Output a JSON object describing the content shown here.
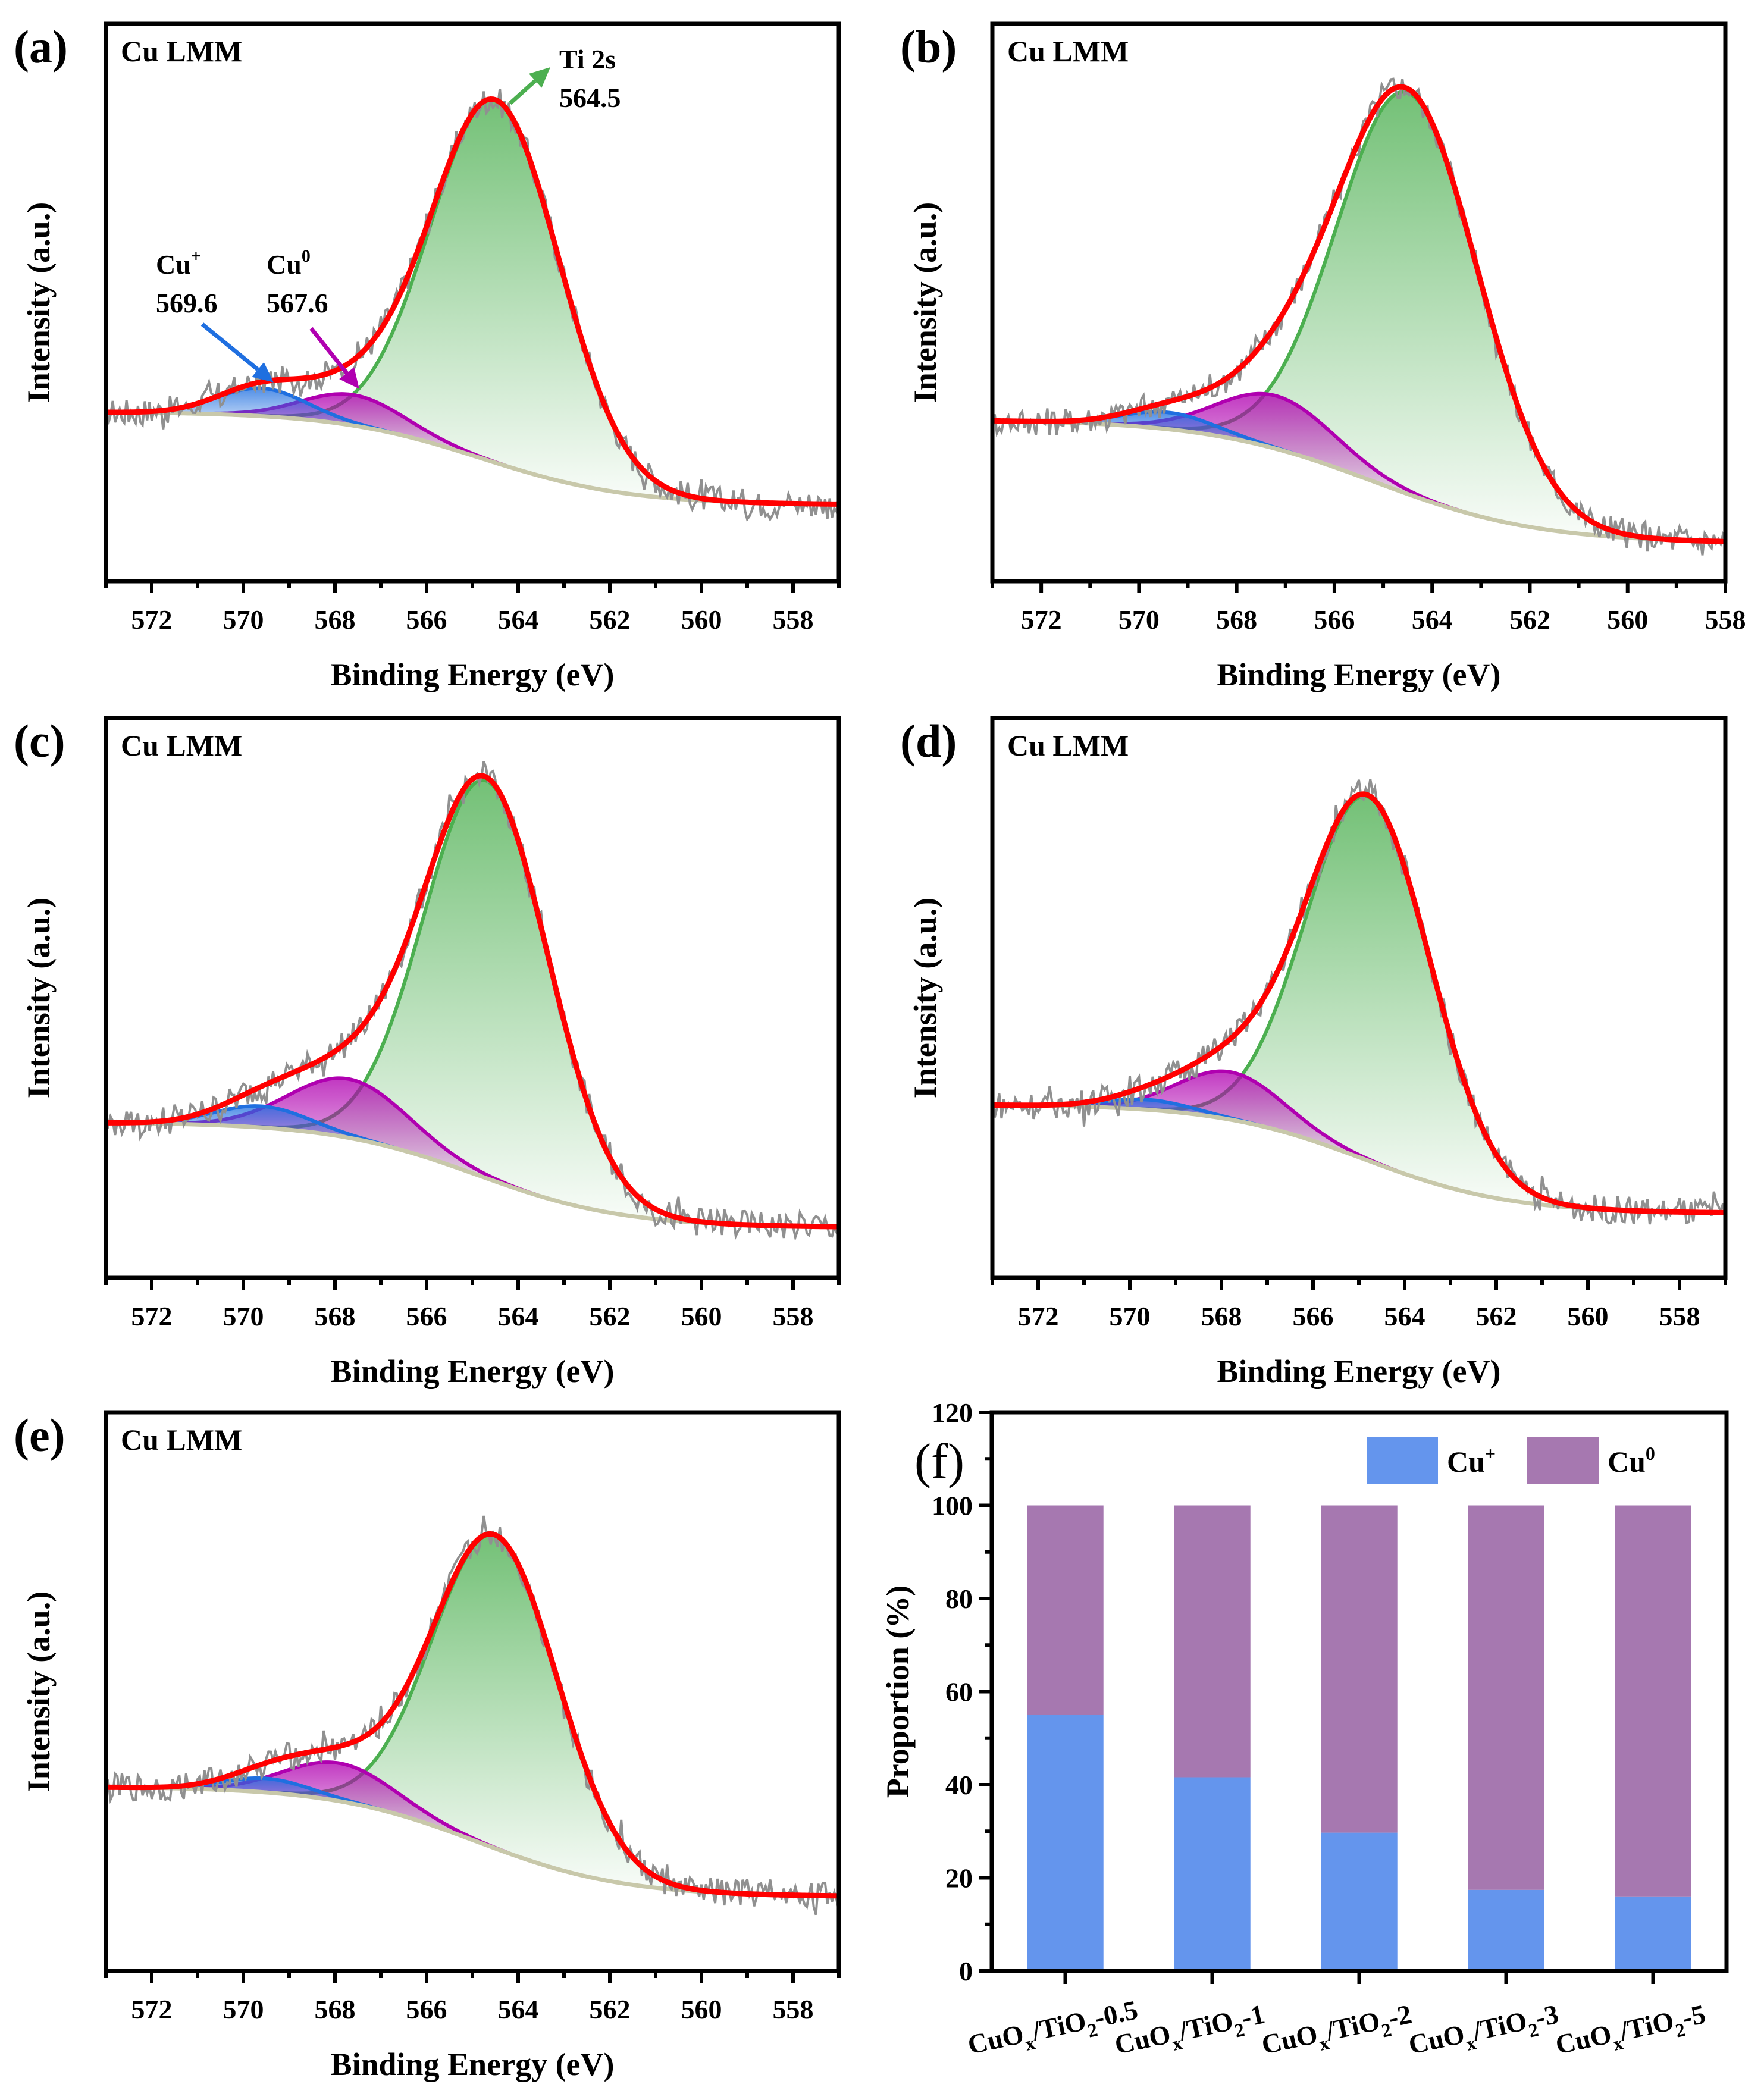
{
  "chart_data": [
    {
      "id": "a",
      "type": "area",
      "panel_label": "(a)",
      "title": "Cu LMM",
      "xlabel": "Binding Energy (eV)",
      "ylabel": "Intensity (a.u.)",
      "xlim": [
        573,
        557
      ],
      "xticks": [
        572,
        570,
        568,
        566,
        564,
        562,
        560,
        558
      ],
      "ylim": [
        0,
        100
      ],
      "yticks_shown": false,
      "background": {
        "left": 30.4,
        "right": 13.7,
        "center": 564.8,
        "width": 1.6
      },
      "peaks": [
        {
          "name": "Cu+",
          "center": 569.6,
          "height": 5.0,
          "fwhm": 2.3,
          "color": "#1f6fe0"
        },
        {
          "name": "Cu0",
          "center": 567.6,
          "height": 5.5,
          "fwhm": 2.6,
          "color": "#b000b0"
        },
        {
          "name": "Ti 2s",
          "center": 564.5,
          "height": 65.0,
          "fwhm": 3.3,
          "color": "#4caf50"
        }
      ],
      "envelope_color": "#ff0000",
      "raw_color": "#909090",
      "background_color": "#c8c8aa",
      "annotations": [
        {
          "label": "Ti 2s",
          "value": "564.5",
          "target": 564.5,
          "color": "#4caf50"
        },
        {
          "label": "Cu",
          "sup": "+",
          "value": "569.6",
          "target": 569.6,
          "color": "#1f6fe0"
        },
        {
          "label": "Cu",
          "sup": "0",
          "value": "567.6",
          "target": 567.6,
          "color": "#b000b0"
        }
      ]
    },
    {
      "id": "b",
      "type": "area",
      "panel_label": "(b)",
      "title": "Cu LMM",
      "xlabel": "Binding Energy (eV)",
      "ylabel": "Intensity (a.u.)",
      "xlim": [
        573,
        558
      ],
      "xticks": [
        572,
        570,
        568,
        566,
        564,
        562,
        560,
        558
      ],
      "ylim": [
        0,
        100
      ],
      "yticks_shown": false,
      "background": {
        "left": 29.0,
        "right": 6.8,
        "center": 565.2,
        "width": 1.7
      },
      "peaks": [
        {
          "name": "Cu+",
          "center": 569.4,
          "height": 3.0,
          "fwhm": 2.2,
          "color": "#1f6fe0"
        },
        {
          "name": "Cu0",
          "center": 567.2,
          "height": 9.5,
          "fwhm": 2.8,
          "color": "#b000b0"
        },
        {
          "name": "Ti 2s",
          "center": 564.5,
          "height": 72.0,
          "fwhm": 3.4,
          "color": "#4caf50"
        }
      ],
      "envelope_color": "#ff0000",
      "raw_color": "#909090",
      "background_color": "#c8c8aa"
    },
    {
      "id": "c",
      "type": "area",
      "panel_label": "(c)",
      "title": "Cu LMM",
      "xlabel": "Binding Energy (eV)",
      "ylabel": "Intensity (a.u.)",
      "xlim": [
        573,
        557
      ],
      "xticks": [
        572,
        570,
        568,
        566,
        564,
        562,
        560,
        558
      ],
      "ylim": [
        0,
        100
      ],
      "yticks_shown": false,
      "background": {
        "left": 27.8,
        "right": 9.0,
        "center": 564.9,
        "width": 1.6
      },
      "peaks": [
        {
          "name": "Cu+",
          "center": 569.6,
          "height": 3.8,
          "fwhm": 2.4,
          "color": "#1f6fe0"
        },
        {
          "name": "Cu0",
          "center": 567.7,
          "height": 10.5,
          "fwhm": 3.0,
          "color": "#b000b0"
        },
        {
          "name": "Ti 2s",
          "center": 564.7,
          "height": 71.0,
          "fwhm": 3.2,
          "color": "#4caf50"
        }
      ],
      "envelope_color": "#ff0000",
      "raw_color": "#909090",
      "background_color": "#c8c8aa"
    },
    {
      "id": "d",
      "type": "area",
      "panel_label": "(d)",
      "title": "Cu LMM",
      "xlabel": "Binding Energy (eV)",
      "ylabel": "Intensity (a.u.)",
      "xlim": [
        573,
        557
      ],
      "xticks": [
        572,
        570,
        568,
        566,
        564,
        562,
        560,
        558
      ],
      "ylim": [
        0,
        100
      ],
      "yticks_shown": false,
      "background": {
        "left": 31.0,
        "right": 11.5,
        "center": 564.9,
        "width": 1.6
      },
      "peaks": [
        {
          "name": "Cu+",
          "center": 569.6,
          "height": 1.8,
          "fwhm": 2.2,
          "color": "#1f6fe0"
        },
        {
          "name": "Cu0",
          "center": 567.8,
          "height": 8.5,
          "fwhm": 2.7,
          "color": "#b000b0"
        },
        {
          "name": "Ti 2s",
          "center": 564.8,
          "height": 65.0,
          "fwhm": 3.2,
          "color": "#4caf50"
        }
      ],
      "envelope_color": "#ff0000",
      "raw_color": "#909090",
      "background_color": "#c8c8aa"
    },
    {
      "id": "e",
      "type": "area",
      "panel_label": "(e)",
      "title": "Cu LMM",
      "xlabel": "Binding Energy (eV)",
      "ylabel": "Intensity (a.u.)",
      "xlim": [
        573,
        557
      ],
      "xticks": [
        572,
        570,
        568,
        566,
        564,
        562,
        560,
        558
      ],
      "ylim": [
        0,
        100
      ],
      "yticks_shown": false,
      "background": {
        "left": 33.0,
        "right": 13.3,
        "center": 564.9,
        "width": 1.6
      },
      "peaks": [
        {
          "name": "Cu+",
          "center": 569.5,
          "height": 2.5,
          "fwhm": 2.2,
          "color": "#1f6fe0"
        },
        {
          "name": "Cu0",
          "center": 567.9,
          "height": 6.8,
          "fwhm": 2.8,
          "color": "#b000b0"
        },
        {
          "name": "Ti 2s",
          "center": 564.5,
          "height": 56.0,
          "fwhm": 3.2,
          "color": "#4caf50"
        }
      ],
      "envelope_color": "#ff0000",
      "raw_color": "#909090",
      "background_color": "#c8c8aa"
    },
    {
      "id": "f",
      "type": "bar",
      "stacked": true,
      "panel_label": "(f)",
      "xlabel": "",
      "ylabel": "Proportion (%)",
      "ylim": [
        0,
        120
      ],
      "yticks": [
        0,
        20,
        40,
        60,
        80,
        100,
        120
      ],
      "categories": [
        {
          "base": "CuO",
          "sub1": "x",
          "mid": "/TiO",
          "sub2": "2",
          "suffix": "-0.5"
        },
        {
          "base": "CuO",
          "sub1": "x",
          "mid": "/TiO",
          "sub2": "2",
          "suffix": "-1"
        },
        {
          "base": "CuO",
          "sub1": "x",
          "mid": "/TiO",
          "sub2": "2",
          "suffix": "-2"
        },
        {
          "base": "CuO",
          "sub1": "x",
          "mid": "/TiO",
          "sub2": "2",
          "suffix": "-3"
        },
        {
          "base": "CuO",
          "sub1": "x",
          "mid": "/TiO",
          "sub2": "2",
          "suffix": "-5"
        }
      ],
      "category_names": [
        "CuOx/TiO2-0.5",
        "CuOx/TiO2-1",
        "CuOx/TiO2-2",
        "CuOx/TiO2-3",
        "CuOx/TiO2-5"
      ],
      "series": [
        {
          "name": "Cu+",
          "label": "Cu",
          "sup": "+",
          "color": "#6495ed",
          "values": [
            55.0,
            41.6,
            29.7,
            17.4,
            16.0
          ]
        },
        {
          "name": "Cu0",
          "label": "Cu",
          "sup": "0",
          "color": "#a678b0",
          "values": [
            45.0,
            58.4,
            70.3,
            82.6,
            84.0
          ]
        }
      ],
      "legend": "top-right"
    }
  ]
}
